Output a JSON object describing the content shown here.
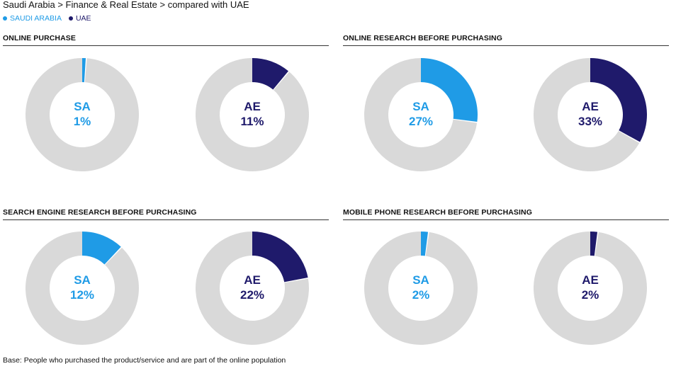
{
  "header": {
    "title": "Saudi Arabia > Finance & Real Estate > compared with UAE"
  },
  "legend": [
    {
      "label": "SAUDI ARABIA",
      "color": "#1f9be6"
    },
    {
      "label": "UAE",
      "color": "#1f1a6b"
    }
  ],
  "colors": {
    "sa": "#1f9be6",
    "ae": "#1f1a6b",
    "remainder": "#d9d9d9"
  },
  "chart_data": {
    "type": "donut",
    "panels": [
      {
        "title": "ONLINE PURCHASE",
        "donuts": [
          {
            "code": "SA",
            "value": 1,
            "value_label": "1%",
            "series": "SAUDI ARABIA"
          },
          {
            "code": "AE",
            "value": 11,
            "value_label": "11%",
            "series": "UAE"
          }
        ]
      },
      {
        "title": "ONLINE RESEARCH BEFORE PURCHASING",
        "donuts": [
          {
            "code": "SA",
            "value": 27,
            "value_label": "27%",
            "series": "SAUDI ARABIA"
          },
          {
            "code": "AE",
            "value": 33,
            "value_label": "33%",
            "series": "UAE"
          }
        ]
      },
      {
        "title": "SEARCH ENGINE RESEARCH BEFORE PURCHASING",
        "donuts": [
          {
            "code": "SA",
            "value": 12,
            "value_label": "12%",
            "series": "SAUDI ARABIA"
          },
          {
            "code": "AE",
            "value": 22,
            "value_label": "22%",
            "series": "UAE"
          }
        ]
      },
      {
        "title": "MOBILE PHONE RESEARCH BEFORE PURCHASING",
        "donuts": [
          {
            "code": "SA",
            "value": 2,
            "value_label": "2%",
            "series": "SAUDI ARABIA"
          },
          {
            "code": "AE",
            "value": 2,
            "value_label": "2%",
            "series": "UAE"
          }
        ]
      }
    ]
  },
  "footer": {
    "base_note": "Base: People who purchased the product/service and are part of the online population"
  }
}
